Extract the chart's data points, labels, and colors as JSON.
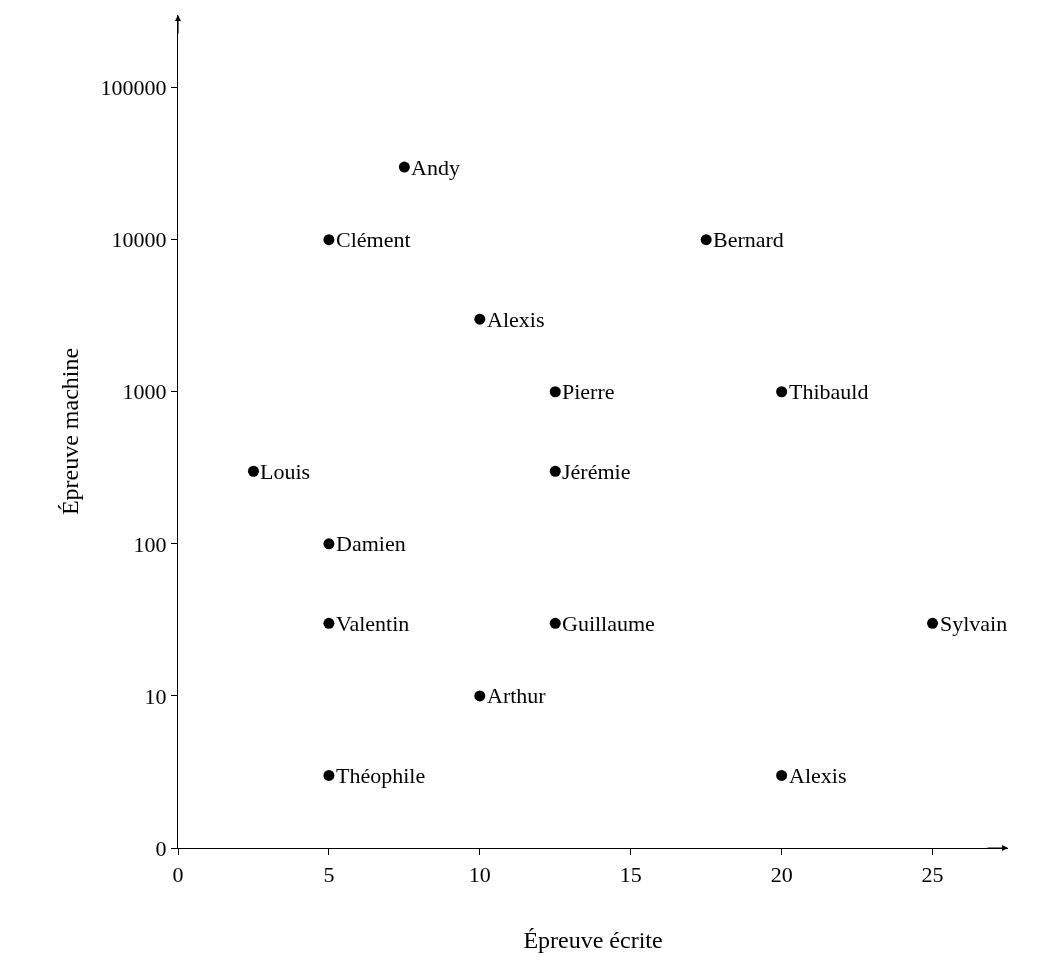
{
  "chart_data": {
    "type": "scatter",
    "xlabel": "Épreuve écrite",
    "ylabel": "Épreuve machine",
    "log": "y",
    "x": [
      7.5,
      5,
      17.5,
      10,
      12.5,
      20,
      2.5,
      12.5,
      5,
      5,
      12.5,
      25,
      10,
      5,
      20
    ],
    "series": [
      {
        "color": "#000000",
        "values": [
          30000,
          10000,
          10000,
          3000,
          1000,
          1000,
          300,
          300,
          100,
          30,
          30,
          30,
          10,
          3,
          3
        ]
      }
    ],
    "annotations": [
      {
        "text": "Andy",
        "x": 7.5,
        "y": 30000
      },
      {
        "text": "Clément",
        "x": 5,
        "y": 10000
      },
      {
        "text": "Bernard",
        "x": 17.5,
        "y": 10000
      },
      {
        "text": "Alexis",
        "x": 10,
        "y": 3000
      },
      {
        "text": "Pierre",
        "x": 12.5,
        "y": 1000
      },
      {
        "text": "Thibauld",
        "x": 20,
        "y": 1000
      },
      {
        "text": "Louis",
        "x": 2.5,
        "y": 300
      },
      {
        "text": "Jérémie",
        "x": 12.5,
        "y": 300
      },
      {
        "text": "Damien",
        "x": 5,
        "y": 100
      },
      {
        "text": "Valentin",
        "x": 5,
        "y": 30
      },
      {
        "text": "Guillaume",
        "x": 12.5,
        "y": 30
      },
      {
        "text": "Sylvain",
        "x": 25,
        "y": 30
      },
      {
        "text": "Arthur",
        "x": 10,
        "y": 10
      },
      {
        "text": "Théophile",
        "x": 5,
        "y": 3
      },
      {
        "text": "Alexis",
        "x": 20,
        "y": 3
      }
    ],
    "xlim": [
      0,
      27.5
    ],
    "xticks": [
      0,
      5,
      10,
      15,
      20,
      25
    ],
    "ylim": [
      0,
      300000
    ],
    "yticks": [
      0,
      10,
      100,
      1000,
      10000,
      100000
    ],
    "marker": "circle"
  }
}
